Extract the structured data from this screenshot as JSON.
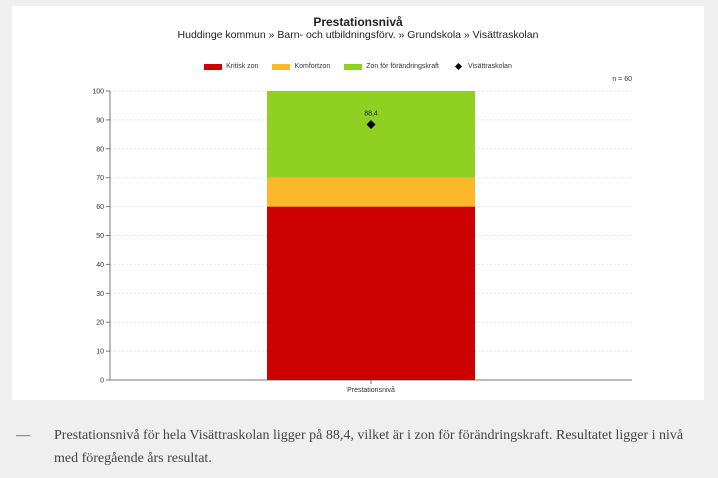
{
  "chart": {
    "title": "Prestationsnivå",
    "subtitle": "Huddinge kommun » Barn- och utbildningsförv. » Grundskola » Visättraskolan",
    "n_label": "n = 60",
    "colors": {
      "kritisk": "#cc0000",
      "komfort": "#fbb829",
      "forandring": "#8fd021",
      "marker": "#000000"
    },
    "legend": [
      {
        "label": "Kritisk zon",
        "color": "#cc0000",
        "shape": "rect"
      },
      {
        "label": "Komfortzon",
        "color": "#fbb829",
        "shape": "rect"
      },
      {
        "label": "Zon för förändringskraft",
        "color": "#8fd021",
        "shape": "rect"
      },
      {
        "label": "Visättraskolan",
        "color": "#000000",
        "shape": "diamond"
      }
    ]
  },
  "chart_data": {
    "type": "bar",
    "stacked": true,
    "categories": [
      "Prestationsnivå"
    ],
    "series": [
      {
        "name": "Kritisk zon",
        "values": [
          60
        ],
        "color": "#cc0000"
      },
      {
        "name": "Komfortzon",
        "values": [
          10
        ],
        "color": "#fbb829"
      },
      {
        "name": "Zon för förändringskraft",
        "values": [
          30
        ],
        "color": "#8fd021"
      }
    ],
    "marker": {
      "name": "Visättraskolan",
      "category": "Prestationsnivå",
      "value": 88.4,
      "label": "88,4"
    },
    "ylim": [
      0,
      100
    ],
    "yticks": [
      0,
      10,
      20,
      30,
      40,
      50,
      60,
      70,
      80,
      90,
      100
    ],
    "grid": true,
    "legend_position": "top-center"
  },
  "caption": {
    "dash": "—",
    "text": "Prestationsnivå för hela Visättraskolan ligger på 88,4, vilket är i zon för förändringskraft. Resultatet ligger i nivå med föregående års resultat."
  }
}
